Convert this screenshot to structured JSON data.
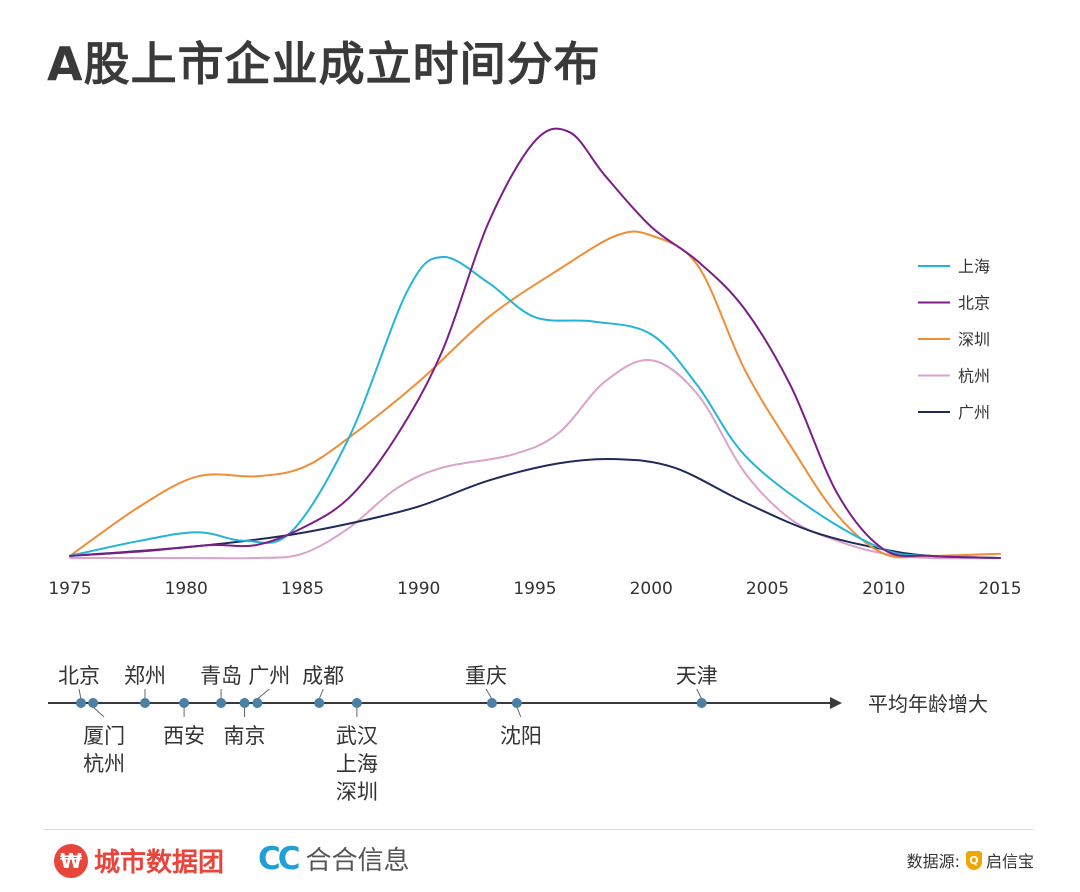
{
  "title": "A股上市企业成立时间分布",
  "colors": {
    "shanghai": "#23b4d6",
    "beijing": "#7b1f87",
    "shenzhen": "#f08d37",
    "hangzhou": "#dba2ca",
    "guangzhou": "#1f2b5a",
    "timeline": "#3a3a3a",
    "dot": "#4a7fa6"
  },
  "chart_data": {
    "type": "line",
    "title": "A股上市企业成立时间分布",
    "xlabel": "",
    "ylabel": "",
    "xlim": [
      1975,
      2015
    ],
    "ylim": [
      0,
      100
    ],
    "x_ticks": [
      "1975",
      "1980",
      "1985",
      "1990",
      "1995",
      "2000",
      "2005",
      "2010",
      "2015"
    ],
    "legend_position": "right",
    "series": [
      {
        "name": "上海",
        "color": "#23b4d6",
        "points": [
          [
            1975,
            0.5
          ],
          [
            1978,
            4
          ],
          [
            1980.5,
            6
          ],
          [
            1982.5,
            4
          ],
          [
            1984.5,
            6
          ],
          [
            1987,
            28
          ],
          [
            1989.5,
            62
          ],
          [
            1991,
            70
          ],
          [
            1993,
            64
          ],
          [
            1995,
            56
          ],
          [
            1997.5,
            55
          ],
          [
            2000,
            52
          ],
          [
            2002,
            40
          ],
          [
            2004,
            24
          ],
          [
            2007,
            11
          ],
          [
            2010,
            2
          ],
          [
            2012,
            0.5
          ],
          [
            2015,
            0
          ]
        ]
      },
      {
        "name": "北京",
        "color": "#7b1f87",
        "points": [
          [
            1975,
            0.5
          ],
          [
            1978,
            1.5
          ],
          [
            1981,
            3
          ],
          [
            1983,
            3
          ],
          [
            1985,
            7
          ],
          [
            1987,
            14
          ],
          [
            1989,
            28
          ],
          [
            1991,
            48
          ],
          [
            1993,
            78
          ],
          [
            1995,
            97
          ],
          [
            1996.5,
            99
          ],
          [
            1998,
            89
          ],
          [
            2000,
            77
          ],
          [
            2002,
            69
          ],
          [
            2004,
            58
          ],
          [
            2006,
            40
          ],
          [
            2008,
            15
          ],
          [
            2010,
            2
          ],
          [
            2012,
            0.5
          ],
          [
            2015,
            0
          ]
        ]
      },
      {
        "name": "深圳",
        "color": "#f08d37",
        "points": [
          [
            1975,
            0.5
          ],
          [
            1978,
            12
          ],
          [
            1980.5,
            19
          ],
          [
            1983,
            19
          ],
          [
            1985,
            21
          ],
          [
            1987,
            28
          ],
          [
            1990,
            41
          ],
          [
            1993,
            56
          ],
          [
            1996,
            67
          ],
          [
            1998.5,
            75
          ],
          [
            2000,
            75
          ],
          [
            2002,
            68
          ],
          [
            2004,
            44
          ],
          [
            2006,
            26
          ],
          [
            2008,
            10
          ],
          [
            2010,
            1
          ],
          [
            2012,
            0.5
          ],
          [
            2015,
            1
          ]
        ]
      },
      {
        "name": "杭州",
        "color": "#dba2ca",
        "points": [
          [
            1975,
            0
          ],
          [
            1980,
            0
          ],
          [
            1983,
            0
          ],
          [
            1985,
            1
          ],
          [
            1987,
            7
          ],
          [
            1989,
            16
          ],
          [
            1991,
            21
          ],
          [
            1994,
            24
          ],
          [
            1996,
            29
          ],
          [
            1998,
            41
          ],
          [
            2000,
            46
          ],
          [
            2002,
            38
          ],
          [
            2004,
            20
          ],
          [
            2006,
            9
          ],
          [
            2008,
            4
          ],
          [
            2010,
            1
          ],
          [
            2012,
            0
          ],
          [
            2015,
            0
          ]
        ]
      },
      {
        "name": "广州",
        "color": "#1f2b5a",
        "points": [
          [
            1975,
            0.5
          ],
          [
            1980,
            2.5
          ],
          [
            1984,
            5
          ],
          [
            1987,
            8
          ],
          [
            1990,
            12
          ],
          [
            1993,
            18
          ],
          [
            1996,
            22
          ],
          [
            1998.5,
            23
          ],
          [
            2001,
            21
          ],
          [
            2004,
            13
          ],
          [
            2007,
            6
          ],
          [
            2010,
            2
          ],
          [
            2012,
            0.5
          ],
          [
            2015,
            0
          ]
        ]
      }
    ]
  },
  "timeline": {
    "axis_label": "平均年龄增大",
    "cities": [
      {
        "name": "北京",
        "pos": 0.0,
        "side": "top",
        "dx": -2
      },
      {
        "name": "厦门\n杭州",
        "pos": 0.017,
        "side": "bottom",
        "dx": 11
      },
      {
        "name": "郑州",
        "pos": 0.09,
        "side": "top",
        "dx": 0
      },
      {
        "name": "西安",
        "pos": 0.145,
        "side": "bottom",
        "dx": 0
      },
      {
        "name": "青岛",
        "pos": 0.197,
        "side": "top",
        "dx": 0
      },
      {
        "name": "南京",
        "pos": 0.23,
        "side": "bottom",
        "dx": 0
      },
      {
        "name": "广州",
        "pos": 0.248,
        "side": "top",
        "dx": 12
      },
      {
        "name": "成都",
        "pos": 0.335,
        "side": "top",
        "dx": 4
      },
      {
        "name": "武汉\n上海\n深圳",
        "pos": 0.388,
        "side": "bottom",
        "dx": 0
      },
      {
        "name": "重庆",
        "pos": 0.578,
        "side": "top",
        "dx": -6
      },
      {
        "name": "沈阳",
        "pos": 0.613,
        "side": "bottom",
        "dx": 4
      },
      {
        "name": "天津",
        "pos": 0.873,
        "side": "top",
        "dx": -5
      }
    ]
  },
  "footer": {
    "brand1_logo": "₩",
    "brand1_name": "城市数据团",
    "brand2_logo": "CC",
    "brand2_name": "合合信息",
    "source_label": "数据源:",
    "source_logo": "Q",
    "source_name": "启信宝"
  }
}
